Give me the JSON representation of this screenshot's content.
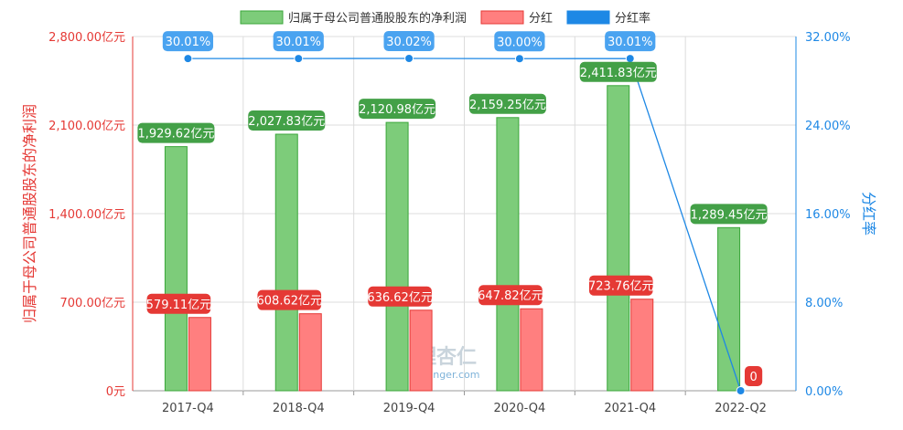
{
  "chart_data": {
    "type": "bar",
    "categories": [
      "2017-Q4",
      "2018-Q4",
      "2019-Q4",
      "2020-Q4",
      "2021-Q4",
      "2022-Q2"
    ],
    "series": [
      {
        "name": "归属于母公司普通股股东的净利润",
        "kind": "bar",
        "axis": "left",
        "color": "#7dcc7a",
        "border": "#3aa63a",
        "label_color": "#43a047",
        "values": [
          1929.62,
          2027.83,
          2120.98,
          2159.25,
          2411.83,
          1289.45
        ],
        "labels": [
          "1,929.62亿元",
          "2,027.83亿元",
          "2,120.98亿元",
          "2,159.25亿元",
          "2,411.83亿元",
          "1,289.45亿元"
        ]
      },
      {
        "name": "分红",
        "kind": "bar",
        "axis": "left",
        "color": "#ff7f7f",
        "border": "#e53935",
        "label_color": "#e53935",
        "values": [
          579.11,
          608.62,
          636.62,
          647.82,
          723.76,
          0
        ],
        "labels": [
          "579.11亿元",
          "608.62亿元",
          "636.62亿元",
          "647.82亿元",
          "723.76亿元",
          "0"
        ]
      },
      {
        "name": "分红率",
        "kind": "line",
        "axis": "right",
        "color": "#1e88e5",
        "label_color": "#4aa3f0",
        "values": [
          30.01,
          30.01,
          30.02,
          30.0,
          30.01,
          0
        ],
        "labels": [
          "30.01%",
          "30.01%",
          "30.02%",
          "30.00%",
          "30.01%",
          ""
        ]
      }
    ],
    "y_left": {
      "title": "归属于母公司普通股股东的净利润",
      "range": [
        0,
        2800
      ],
      "ticks": [
        0,
        700,
        1400,
        2100,
        2800
      ],
      "tick_labels": [
        "0元",
        "700.00亿元",
        "1,400.00亿元",
        "2,100.00亿元",
        "2,800.00亿元"
      ]
    },
    "y_right": {
      "title": "分红率",
      "range": [
        0,
        32
      ],
      "ticks": [
        0,
        8,
        16,
        24,
        32
      ],
      "tick_labels": [
        "0.00%",
        "8.00%",
        "16.00%",
        "24.00%",
        "32.00%"
      ]
    },
    "grid": true,
    "legend_position": "top"
  },
  "watermark": {
    "main": "理杏仁",
    "sub": "lixinger.com"
  }
}
